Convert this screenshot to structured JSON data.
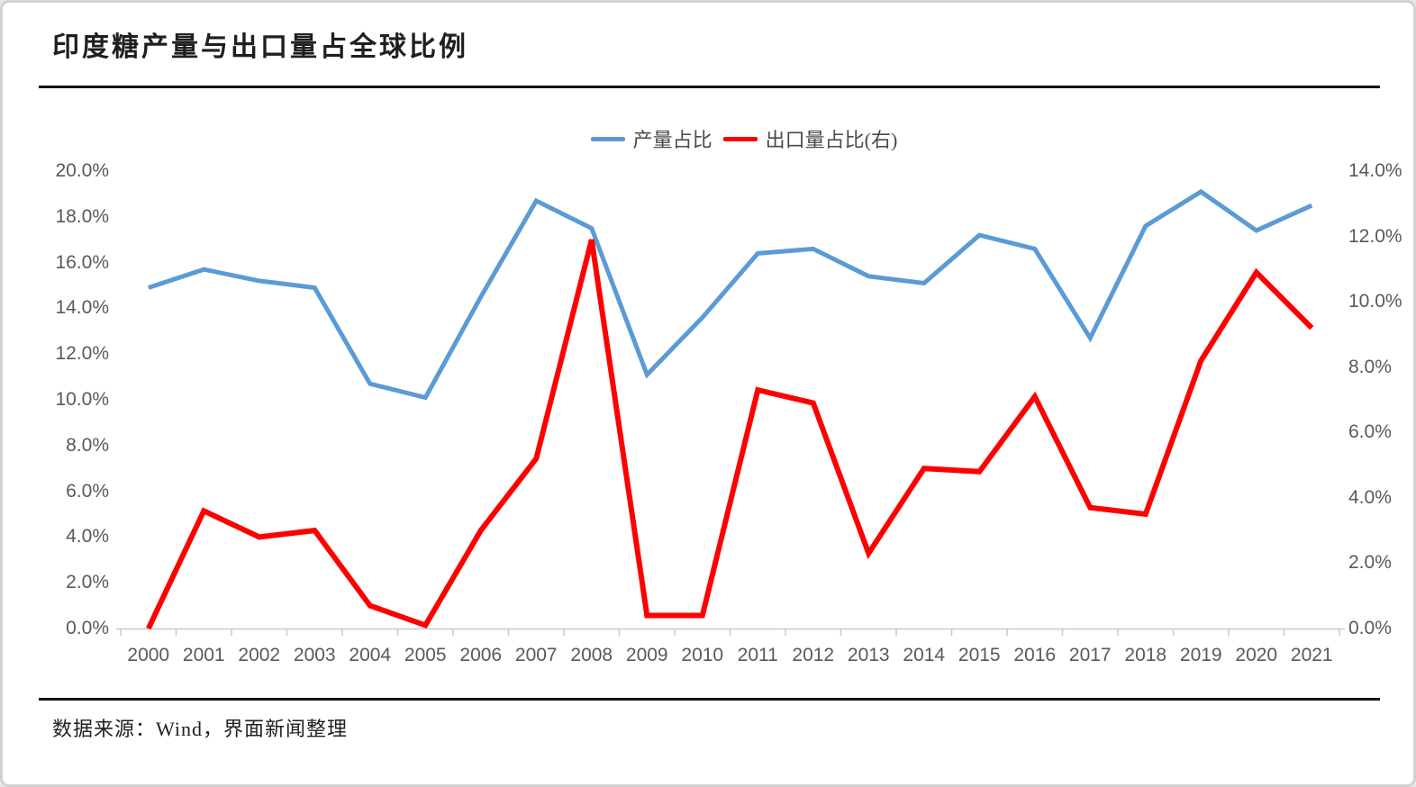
{
  "page": {
    "title": "印度糖产量与出口量占全球比例",
    "source": "数据来源：Wind，界面新闻整理"
  },
  "legend": [
    {
      "label": "产量占比",
      "color": "#5B9BD5",
      "swatch": "blue-line-swatch"
    },
    {
      "label": "出口量占比(右)",
      "color": "#FF0000",
      "swatch": "red-line-swatch"
    }
  ],
  "colors": {
    "production_line": "#5B9BD5",
    "export_line": "#FF0000",
    "axis_line": "#C9C9C9",
    "tick_text": "#595959",
    "divider": "#141414"
  },
  "chart_data": {
    "type": "line",
    "title": "印度糖产量与出口量占全球比例",
    "categories": [
      "2000",
      "2001",
      "2002",
      "2003",
      "2004",
      "2005",
      "2006",
      "2007",
      "2008",
      "2009",
      "2010",
      "2011",
      "2012",
      "2013",
      "2014",
      "2015",
      "2016",
      "2017",
      "2018",
      "2019",
      "2020",
      "2021"
    ],
    "series": [
      {
        "key": "production-share",
        "name": "产量占比",
        "axis": "left",
        "color": "#5B9BD5",
        "stroke_width": 5,
        "values": [
          14.9,
          15.7,
          15.2,
          14.9,
          10.7,
          10.1,
          14.5,
          18.7,
          17.5,
          11.1,
          13.6,
          16.4,
          16.6,
          15.4,
          15.1,
          17.2,
          16.6,
          12.7,
          17.6,
          19.1,
          17.4,
          18.5
        ]
      },
      {
        "key": "export-share",
        "name": "出口量占比(右)",
        "axis": "right",
        "color": "#FF0000",
        "stroke_width": 6,
        "values": [
          0.0,
          3.6,
          2.8,
          3.0,
          0.7,
          0.1,
          3.0,
          5.2,
          11.9,
          0.4,
          0.4,
          7.3,
          6.9,
          2.3,
          4.9,
          4.8,
          7.1,
          3.7,
          3.5,
          8.2,
          10.9,
          9.2
        ]
      }
    ],
    "left_axis": {
      "ylim": [
        0,
        20
      ],
      "step": 2,
      "tick_labels": [
        "0.0%",
        "2.0%",
        "4.0%",
        "6.0%",
        "8.0%",
        "10.0%",
        "12.0%",
        "14.0%",
        "16.0%",
        "18.0%",
        "20.0%"
      ]
    },
    "right_axis": {
      "ylim": [
        0,
        14
      ],
      "step": 2,
      "tick_labels": [
        "0.0%",
        "2.0%",
        "4.0%",
        "6.0%",
        "8.0%",
        "10.0%",
        "12.0%",
        "14.0%"
      ]
    },
    "grid": false,
    "legend_position": "top-center",
    "unit": "percent"
  }
}
